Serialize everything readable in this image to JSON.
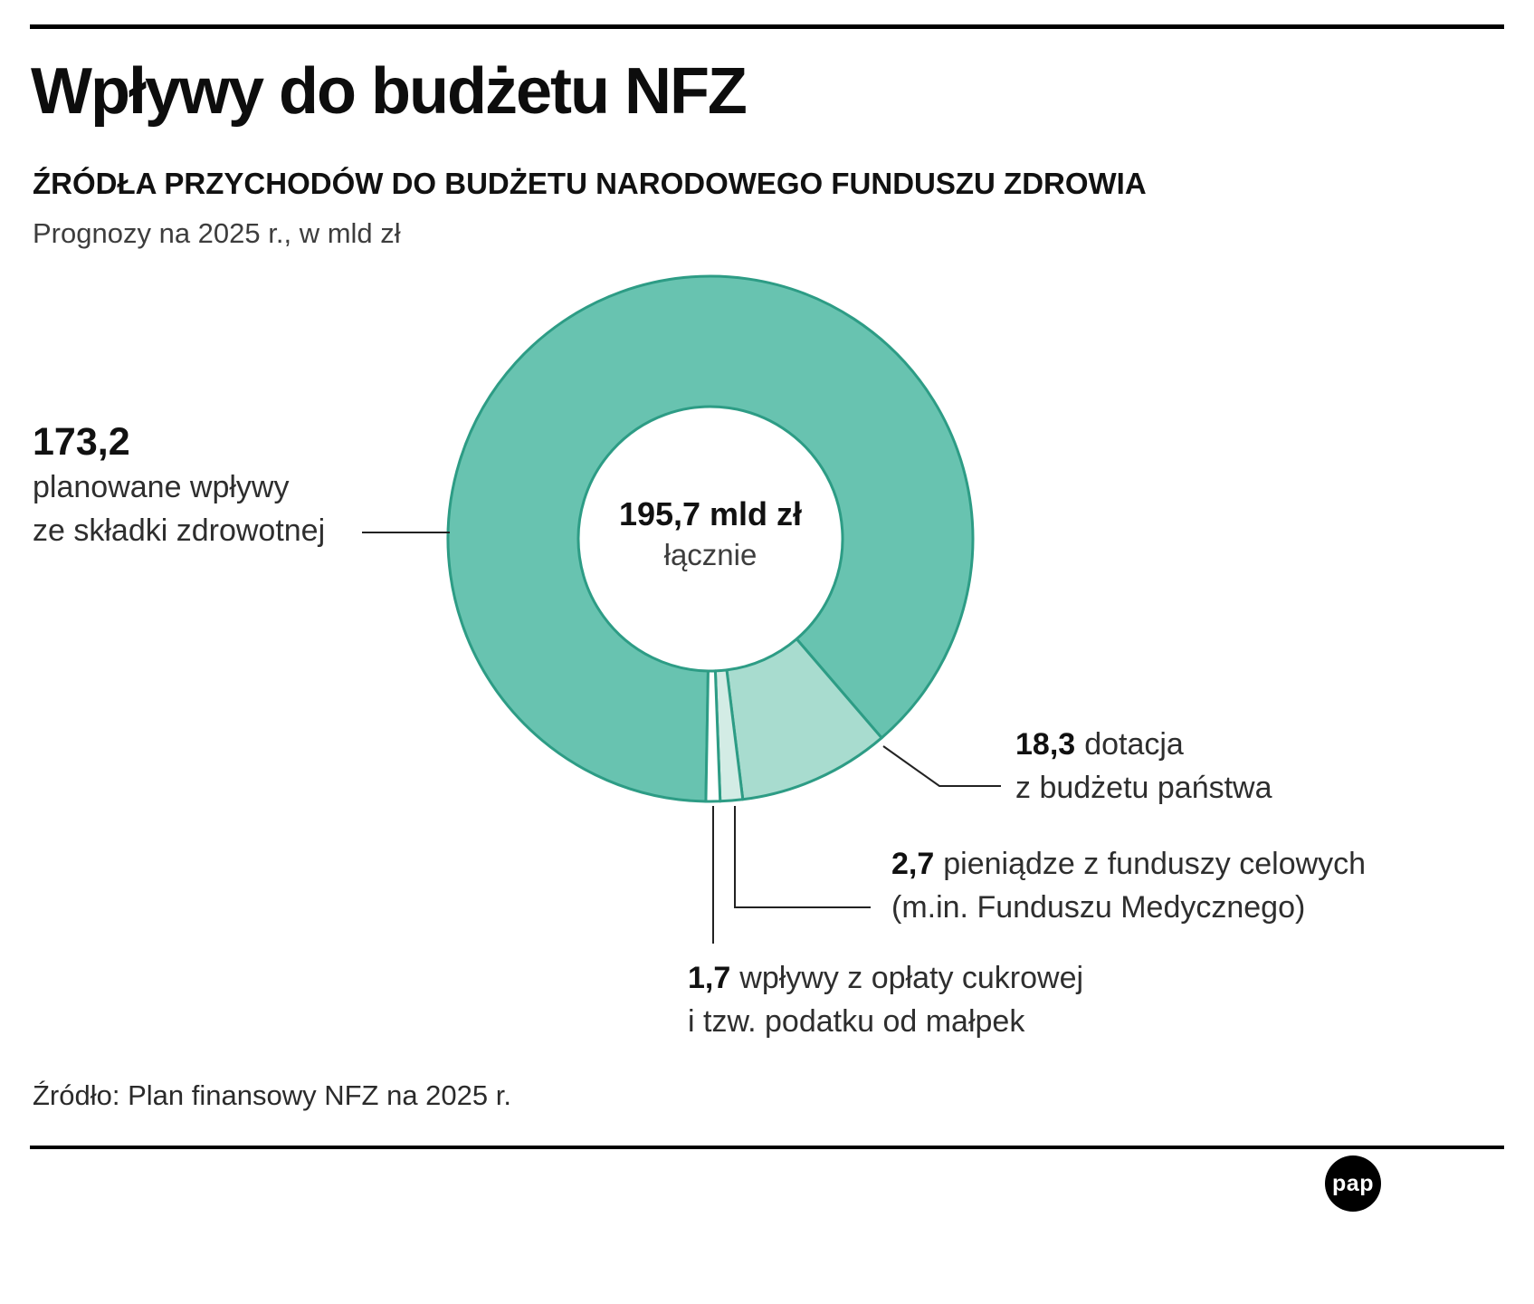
{
  "header": {
    "title": "Wpływy do budżetu NFZ",
    "subtitle": "ŹRÓDŁA PRZYCHODÓW DO BUDŻETU NARODOWEGO FUNDUSZU ZDROWIA",
    "note": "Prognozy na 2025 r., w mld zł"
  },
  "chart_data": {
    "type": "pie",
    "donut": true,
    "title": "Wpływy do budżetu NFZ",
    "subtitle": "ŹRÓDŁA PRZYCHODÓW DO BUDŻETU NARODOWEGO FUNDUSZU ZDROWIA",
    "unit": "mld zł",
    "year": "2025",
    "total_value": 195.7,
    "total_label": "195,7 mld zł",
    "total_sublabel": "łącznie",
    "start_angle_deg": 181,
    "direction": "clockwise",
    "stroke_color": "#2d9c85",
    "segments": [
      {
        "value": 173.2,
        "value_label": "173,2",
        "label": "planowane wpływy ze składki zdrowotnej",
        "color": "#68c3b0"
      },
      {
        "value": 18.3,
        "value_label": "18,3",
        "label": "dotacja z budżetu państwa",
        "color": "#a8dccf"
      },
      {
        "value": 2.7,
        "value_label": "2,7",
        "label": "pieniądze z funduszy celowych (m.in. Funduszu Medycznego)",
        "color": "#d3ece5"
      },
      {
        "value": 1.7,
        "value_label": "1,7",
        "label": "wpływy z opłaty cukrowej i tzw. podatku od małpek",
        "color": "#ffffff"
      }
    ]
  },
  "callouts": {
    "skladka": {
      "value": "173,2",
      "line1": "planowane wpływy",
      "line2": "ze składki zdrowotnej"
    },
    "dotacja": {
      "value": "18,3",
      "text": "dotacja",
      "line2": "z budżetu państwa"
    },
    "fundusze": {
      "value": "2,7",
      "text": "pieniądze z funduszy celowych",
      "line2": "(m.in. Funduszu Medycznego)"
    },
    "cukrowa": {
      "value": "1,7",
      "text": "wpływy z opłaty cukrowej",
      "line2": "i tzw. podatku od małpek"
    }
  },
  "footer": {
    "source": "Źródło: Plan finansowy NFZ na 2025 r.",
    "logo_text": "pap"
  }
}
